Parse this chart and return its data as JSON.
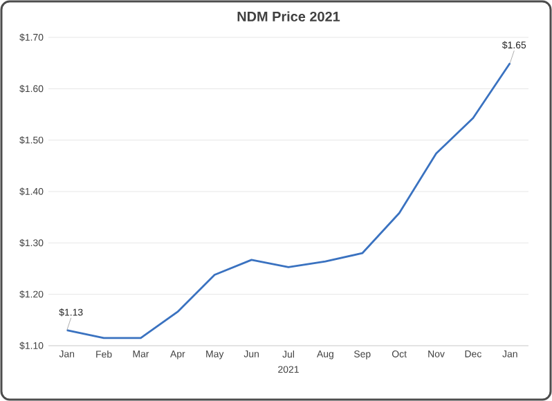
{
  "chart_data": {
    "type": "line",
    "title": "NDM Price 2021",
    "xlabel": "2021",
    "categories": [
      "Jan",
      "Feb",
      "Mar",
      "Apr",
      "May",
      "Jun",
      "Jul",
      "Aug",
      "Sep",
      "Oct",
      "Nov",
      "Dec",
      "Jan"
    ],
    "series": [
      {
        "color": "#3a72c0",
        "values": [
          1.13,
          1.115,
          1.115,
          1.166,
          1.238,
          1.267,
          1.253,
          1.264,
          1.28,
          1.358,
          1.474,
          1.543,
          1.65
        ],
        "value_labels": [
          "$1.13",
          null,
          null,
          null,
          null,
          null,
          null,
          null,
          null,
          null,
          null,
          null,
          "$1.65"
        ]
      }
    ],
    "ylim": [
      1.1,
      1.7
    ],
    "yticks": [
      {
        "value": 1.1,
        "label": "$1.10"
      },
      {
        "value": 1.2,
        "label": "$1.20"
      },
      {
        "value": 1.3,
        "label": "$1.30"
      },
      {
        "value": 1.4,
        "label": "$1.40"
      },
      {
        "value": 1.5,
        "label": "$1.50"
      },
      {
        "value": 1.6,
        "label": "$1.60"
      },
      {
        "value": 1.7,
        "label": "$1.70"
      }
    ],
    "grid": "y",
    "marker": "none",
    "line_style": "solid"
  }
}
